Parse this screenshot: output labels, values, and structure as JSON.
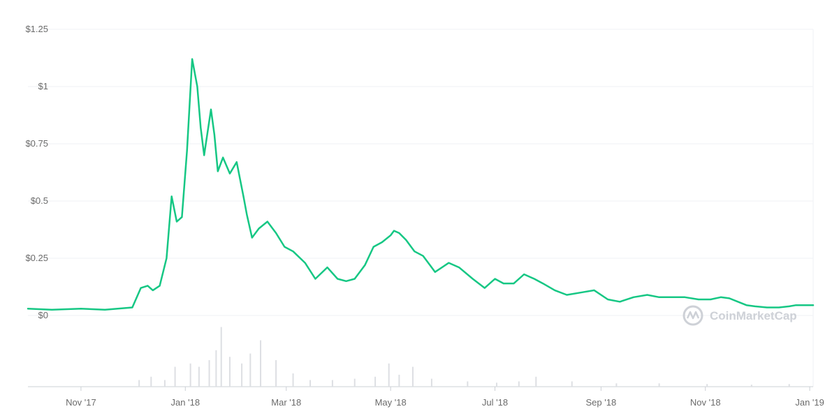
{
  "chart_data": {
    "type": "line",
    "title": "",
    "xlabel": "",
    "ylabel": "",
    "ylim": [
      0,
      1.25
    ],
    "y_ticks": [
      "$0",
      "$0.25",
      "$0.5",
      "$0.75",
      "$1",
      "$1.25"
    ],
    "x_ticks": [
      "Nov '17",
      "Jan '18",
      "Mar '18",
      "May '18",
      "Jul '18",
      "Sep '18",
      "Nov '18",
      "Jan '19"
    ],
    "x_range": [
      "2017-10-01",
      "2019-01-03"
    ],
    "grid": true,
    "series": [
      {
        "name": "",
        "color": "#16c784",
        "x": [
          "2017-10-01",
          "2017-10-15",
          "2017-11-01",
          "2017-11-15",
          "2017-12-01",
          "2017-12-06",
          "2017-12-10",
          "2017-12-13",
          "2017-12-17",
          "2017-12-21",
          "2017-12-24",
          "2017-12-27",
          "2017-12-30",
          "2018-01-02",
          "2018-01-05",
          "2018-01-08",
          "2018-01-10",
          "2018-01-12",
          "2018-01-16",
          "2018-01-18",
          "2018-01-20",
          "2018-01-23",
          "2018-01-27",
          "2018-01-31",
          "2018-02-04",
          "2018-02-06",
          "2018-02-09",
          "2018-02-13",
          "2018-02-18",
          "2018-02-23",
          "2018-02-28",
          "2018-03-05",
          "2018-03-12",
          "2018-03-18",
          "2018-03-25",
          "2018-03-31",
          "2018-04-05",
          "2018-04-10",
          "2018-04-16",
          "2018-04-21",
          "2018-04-26",
          "2018-05-01",
          "2018-05-03",
          "2018-05-06",
          "2018-05-10",
          "2018-05-15",
          "2018-05-20",
          "2018-05-27",
          "2018-06-04",
          "2018-06-10",
          "2018-06-18",
          "2018-06-25",
          "2018-07-01",
          "2018-07-06",
          "2018-07-12",
          "2018-07-18",
          "2018-07-24",
          "2018-07-29",
          "2018-08-05",
          "2018-08-12",
          "2018-08-20",
          "2018-08-28",
          "2018-09-05",
          "2018-09-12",
          "2018-09-20",
          "2018-09-28",
          "2018-10-05",
          "2018-10-12",
          "2018-10-20",
          "2018-10-28",
          "2018-11-04",
          "2018-11-10",
          "2018-11-15",
          "2018-11-20",
          "2018-11-25",
          "2018-11-30",
          "2018-12-07",
          "2018-12-14",
          "2018-12-20",
          "2018-12-24",
          "2018-12-28",
          "2019-01-03"
        ],
        "values": [
          0.03,
          0.025,
          0.03,
          0.025,
          0.035,
          0.12,
          0.13,
          0.11,
          0.13,
          0.25,
          0.52,
          0.41,
          0.43,
          0.72,
          1.12,
          1.0,
          0.82,
          0.7,
          0.9,
          0.79,
          0.63,
          0.69,
          0.62,
          0.67,
          0.52,
          0.44,
          0.34,
          0.38,
          0.41,
          0.36,
          0.3,
          0.28,
          0.23,
          0.16,
          0.21,
          0.16,
          0.15,
          0.16,
          0.22,
          0.3,
          0.32,
          0.35,
          0.37,
          0.36,
          0.33,
          0.28,
          0.26,
          0.19,
          0.23,
          0.21,
          0.16,
          0.12,
          0.16,
          0.14,
          0.14,
          0.18,
          0.16,
          0.14,
          0.11,
          0.09,
          0.1,
          0.11,
          0.07,
          0.06,
          0.08,
          0.09,
          0.08,
          0.08,
          0.08,
          0.07,
          0.07,
          0.08,
          0.075,
          0.06,
          0.045,
          0.04,
          0.035,
          0.035,
          0.04,
          0.045,
          0.045,
          0.045
        ]
      },
      {
        "name": "",
        "color": "#dddfe3",
        "type": "volume",
        "x": [
          "2017-12-05",
          "2017-12-12",
          "2017-12-20",
          "2017-12-26",
          "2018-01-04",
          "2018-01-09",
          "2018-01-15",
          "2018-01-19",
          "2018-01-22",
          "2018-01-27",
          "2018-02-03",
          "2018-02-08",
          "2018-02-14",
          "2018-02-23",
          "2018-03-05",
          "2018-03-15",
          "2018-03-28",
          "2018-04-10",
          "2018-04-22",
          "2018-04-30",
          "2018-05-06",
          "2018-05-14",
          "2018-05-25",
          "2018-06-15",
          "2018-07-02",
          "2018-07-15",
          "2018-07-25",
          "2018-08-15",
          "2018-09-10",
          "2018-10-05",
          "2018-11-02",
          "2018-11-28",
          "2018-12-20"
        ],
        "values": [
          0.1,
          0.15,
          0.1,
          0.3,
          0.35,
          0.3,
          0.4,
          0.55,
          0.9,
          0.45,
          0.35,
          0.5,
          0.7,
          0.4,
          0.2,
          0.1,
          0.1,
          0.12,
          0.15,
          0.35,
          0.18,
          0.3,
          0.12,
          0.08,
          0.06,
          0.08,
          0.15,
          0.08,
          0.05,
          0.05,
          0.04,
          0.03,
          0.04
        ]
      }
    ]
  },
  "watermark": {
    "text": "CoinMarketCap",
    "icon": "coinmarketcap-logo-icon"
  }
}
